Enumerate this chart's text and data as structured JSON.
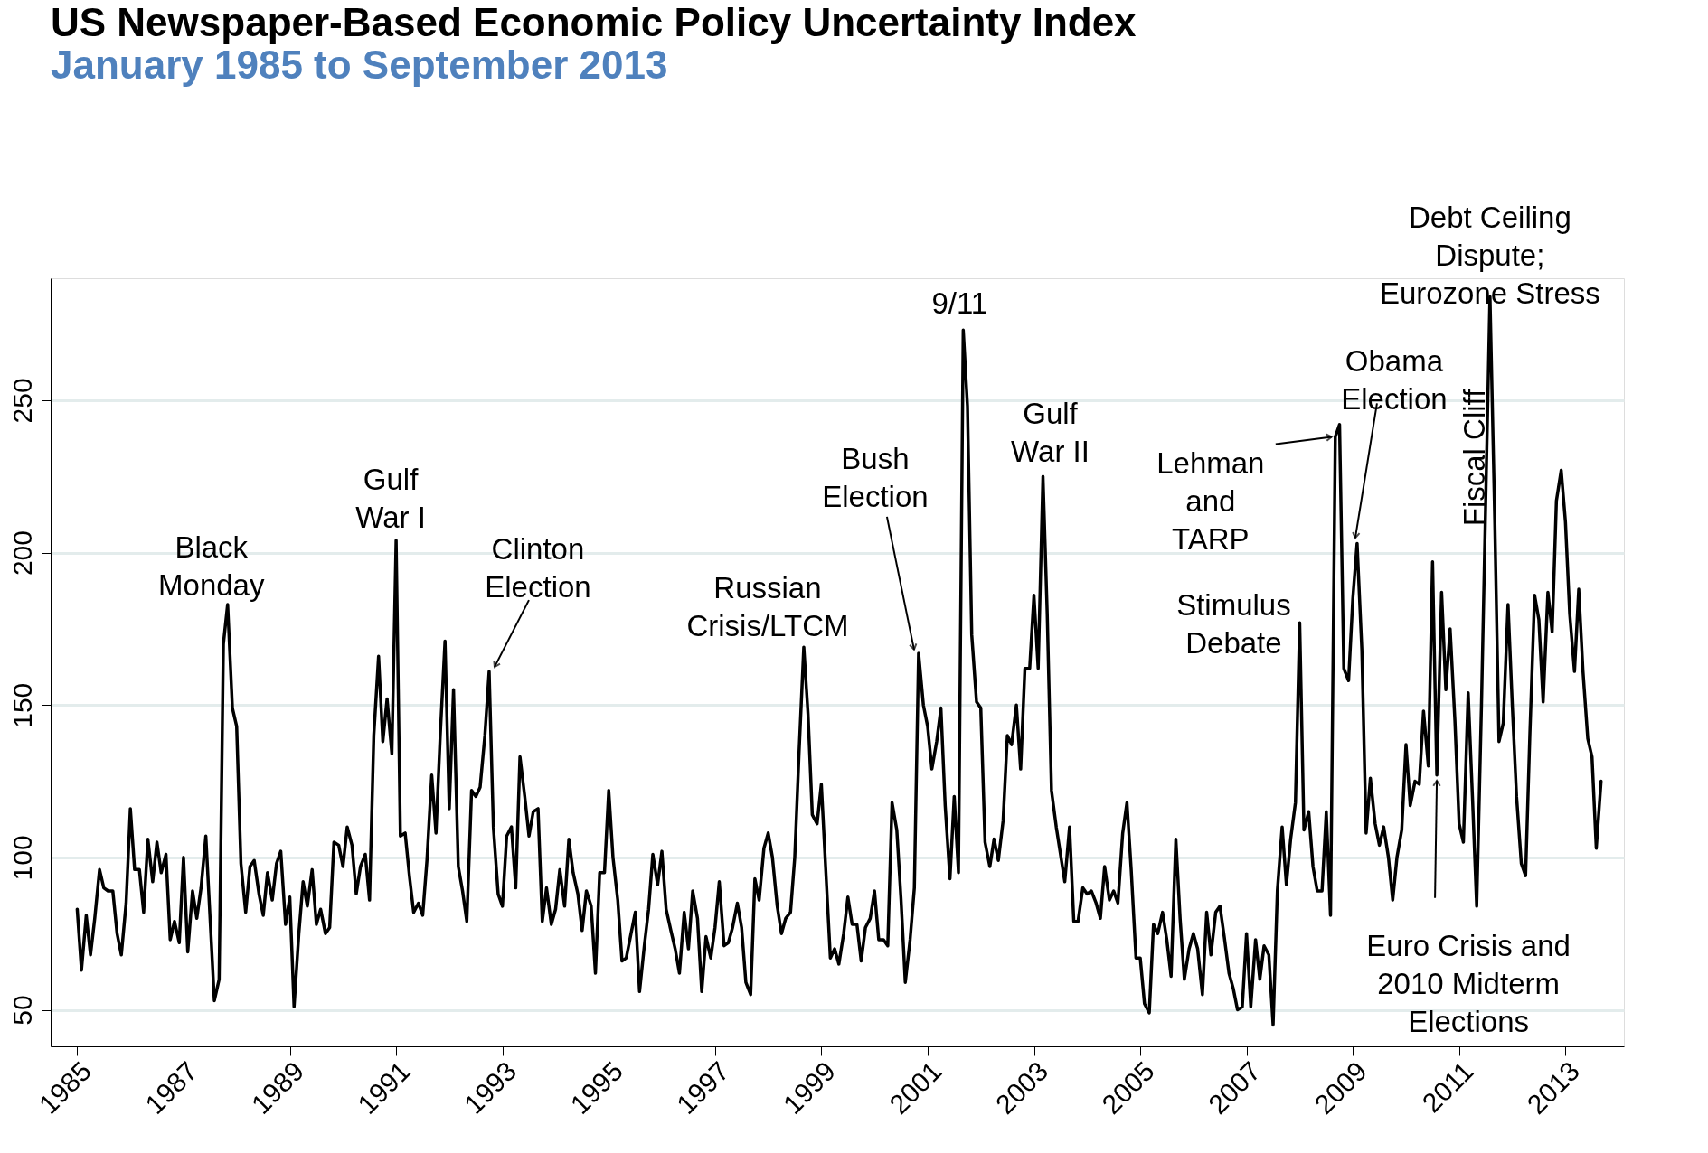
{
  "chart_data": {
    "type": "line",
    "title": "US Newspaper-Based Economic Policy Uncertainty Index",
    "subtitle": "January 1985 to September 2013",
    "x": [
      1985.0,
      1985.08,
      1985.17,
      1985.25,
      1985.33,
      1985.42,
      1985.5,
      1985.58,
      1985.67,
      1985.75,
      1985.83,
      1985.92,
      1986.0,
      1986.08,
      1986.17,
      1986.25,
      1986.33,
      1986.42,
      1986.5,
      1986.58,
      1986.67,
      1986.75,
      1986.83,
      1986.92,
      1987.0,
      1987.08,
      1987.17,
      1987.25,
      1987.33,
      1987.42,
      1987.5,
      1987.58,
      1987.67,
      1987.75,
      1987.83,
      1987.92,
      1988.0,
      1988.08,
      1988.17,
      1988.25,
      1988.33,
      1988.42,
      1988.5,
      1988.58,
      1988.67,
      1988.75,
      1988.83,
      1988.92,
      1989.0,
      1989.08,
      1989.17,
      1989.25,
      1989.33,
      1989.42,
      1989.5,
      1989.58,
      1989.67,
      1989.75,
      1989.83,
      1989.92,
      1990.0,
      1990.08,
      1990.17,
      1990.25,
      1990.33,
      1990.42,
      1990.5,
      1990.58,
      1990.67,
      1990.75,
      1990.83,
      1990.92,
      1991.0,
      1991.08,
      1991.17,
      1991.25,
      1991.33,
      1991.42,
      1991.5,
      1991.58,
      1991.67,
      1991.75,
      1991.83,
      1991.92,
      1992.0,
      1992.08,
      1992.17,
      1992.25,
      1992.33,
      1992.42,
      1992.5,
      1992.58,
      1992.67,
      1992.75,
      1992.83,
      1992.92,
      1993.0,
      1993.08,
      1993.17,
      1993.25,
      1993.33,
      1993.42,
      1993.5,
      1993.58,
      1993.67,
      1993.75,
      1993.83,
      1993.92,
      1994.0,
      1994.08,
      1994.17,
      1994.25,
      1994.33,
      1994.42,
      1994.5,
      1994.58,
      1994.67,
      1994.75,
      1994.83,
      1994.92,
      1995.0,
      1995.08,
      1995.17,
      1995.25,
      1995.33,
      1995.42,
      1995.5,
      1995.58,
      1995.67,
      1995.75,
      1995.83,
      1995.92,
      1996.0,
      1996.08,
      1996.17,
      1996.25,
      1996.33,
      1996.42,
      1996.5,
      1996.58,
      1996.67,
      1996.75,
      1996.83,
      1996.92,
      1997.0,
      1997.08,
      1997.17,
      1997.25,
      1997.33,
      1997.42,
      1997.5,
      1997.58,
      1997.67,
      1997.75,
      1997.83,
      1997.92,
      1998.0,
      1998.08,
      1998.17,
      1998.25,
      1998.33,
      1998.42,
      1998.5,
      1998.58,
      1998.67,
      1998.75,
      1998.83,
      1998.92,
      1999.0,
      1999.08,
      1999.17,
      1999.25,
      1999.33,
      1999.42,
      1999.5,
      1999.58,
      1999.67,
      1999.75,
      1999.83,
      1999.92,
      2000.0,
      2000.08,
      2000.17,
      2000.25,
      2000.33,
      2000.42,
      2000.5,
      2000.58,
      2000.67,
      2000.75,
      2000.83,
      2000.92,
      2001.0,
      2001.08,
      2001.17,
      2001.25,
      2001.33,
      2001.42,
      2001.5,
      2001.58,
      2001.67,
      2001.75,
      2001.83,
      2001.92,
      2002.0,
      2002.08,
      2002.17,
      2002.25,
      2002.33,
      2002.42,
      2002.5,
      2002.58,
      2002.67,
      2002.75,
      2002.83,
      2002.92,
      2003.0,
      2003.08,
      2003.17,
      2003.25,
      2003.33,
      2003.42,
      2003.5,
      2003.58,
      2003.67,
      2003.75,
      2003.83,
      2003.92,
      2004.0,
      2004.08,
      2004.17,
      2004.25,
      2004.33,
      2004.42,
      2004.5,
      2004.58,
      2004.67,
      2004.75,
      2004.83,
      2004.92,
      2005.0,
      2005.08,
      2005.17,
      2005.25,
      2005.33,
      2005.42,
      2005.5,
      2005.58,
      2005.67,
      2005.75,
      2005.83,
      2005.92,
      2006.0,
      2006.08,
      2006.17,
      2006.25,
      2006.33,
      2006.42,
      2006.5,
      2006.58,
      2006.67,
      2006.75,
      2006.83,
      2006.92,
      2007.0,
      2007.08,
      2007.17,
      2007.25,
      2007.33,
      2007.42,
      2007.5,
      2007.58,
      2007.67,
      2007.75,
      2007.83,
      2007.92,
      2008.0,
      2008.08,
      2008.17,
      2008.25,
      2008.33,
      2008.42,
      2008.5,
      2008.58,
      2008.67,
      2008.75,
      2008.83,
      2008.92,
      2009.0,
      2009.08,
      2009.17,
      2009.25,
      2009.33,
      2009.42,
      2009.5,
      2009.58,
      2009.67,
      2009.75,
      2009.83,
      2009.92,
      2010.0,
      2010.08,
      2010.17,
      2010.25,
      2010.33,
      2010.42,
      2010.5,
      2010.58,
      2010.67,
      2010.75,
      2010.83,
      2010.92,
      2011.0,
      2011.08,
      2011.17,
      2011.25,
      2011.33,
      2011.42,
      2011.5,
      2011.58,
      2011.67,
      2011.75,
      2011.83,
      2011.92,
      2012.0,
      2012.08,
      2012.17,
      2012.25,
      2012.33,
      2012.42,
      2012.5,
      2012.58,
      2012.67,
      2012.75,
      2012.83,
      2012.92,
      2013.0,
      2013.08,
      2013.17,
      2013.25,
      2013.33,
      2013.42,
      2013.5,
      2013.58,
      2013.67
    ],
    "series": [
      {
        "color": "#000000",
        "values": [
          83,
          63,
          81,
          68,
          80,
          96,
          90,
          89,
          89,
          75,
          68,
          85,
          116,
          96,
          96,
          82,
          106,
          92,
          105,
          95,
          101,
          73,
          79,
          72,
          100,
          69,
          89,
          80,
          90,
          107,
          80,
          53,
          60,
          170,
          183,
          149,
          143,
          98,
          82,
          97,
          99,
          88,
          81,
          95,
          86,
          98,
          102,
          78,
          87,
          51,
          75,
          92,
          84,
          96,
          78,
          83,
          75,
          77,
          105,
          104,
          97,
          110,
          104,
          88,
          97,
          101,
          86,
          140,
          166,
          138,
          152,
          134,
          204,
          107,
          108,
          94,
          82,
          85,
          81,
          99,
          127,
          108,
          140,
          171,
          116,
          155,
          97,
          89,
          79,
          122,
          120,
          123,
          140,
          161,
          110,
          88,
          84,
          107,
          110,
          90,
          133,
          120,
          107,
          115,
          116,
          79,
          90,
          78,
          83,
          96,
          84,
          106,
          95,
          88,
          76,
          89,
          84,
          62,
          95,
          95,
          122,
          100,
          86,
          66,
          67,
          75,
          82,
          56,
          71,
          83,
          101,
          91,
          102,
          83,
          76,
          70,
          62,
          82,
          70,
          89,
          80,
          56,
          74,
          67,
          77,
          92,
          71,
          72,
          77,
          85,
          77,
          59,
          55,
          93,
          86,
          103,
          108,
          100,
          84,
          75,
          80,
          82,
          100,
          134,
          169,
          147,
          114,
          111,
          124,
          97,
          67,
          70,
          65,
          75,
          87,
          78,
          78,
          66,
          77,
          80,
          89,
          73,
          73,
          71,
          118,
          109,
          86,
          59,
          73,
          90,
          167,
          150,
          143,
          129,
          138,
          149,
          117,
          93,
          120,
          95,
          273,
          248,
          173,
          151,
          149,
          105,
          97,
          106,
          99,
          112,
          140,
          137,
          150,
          129,
          162,
          162,
          186,
          162,
          225,
          180,
          122,
          110,
          101,
          92,
          110,
          79,
          79,
          90,
          88,
          89,
          85,
          80,
          97,
          86,
          89,
          85,
          108,
          118,
          96,
          67,
          67,
          52,
          49,
          78,
          75,
          82,
          73,
          61,
          106,
          80,
          60,
          70,
          75,
          70,
          55,
          82,
          68,
          82,
          84,
          74,
          62,
          57,
          50,
          51,
          75,
          51,
          73,
          60,
          71,
          68,
          45,
          89,
          110,
          91,
          106,
          118,
          177,
          109,
          115,
          97,
          89,
          89,
          115,
          81,
          238,
          242,
          162,
          158,
          185,
          203,
          168,
          108,
          126,
          111,
          104,
          110,
          100,
          86,
          100,
          109,
          137,
          117,
          125,
          124,
          148,
          130,
          197,
          127,
          187,
          155,
          175,
          145,
          111,
          105,
          154,
          120,
          84,
          150,
          217,
          284,
          211,
          138,
          144,
          183,
          150,
          120,
          98,
          94,
          140,
          186,
          178,
          151,
          187,
          174,
          217,
          227,
          210,
          180,
          161,
          188,
          161,
          139,
          133,
          103,
          125
        ]
      }
    ],
    "xlim": [
      1984.5,
      2014.1
    ],
    "ylim": [
      38,
      290
    ],
    "xticks": [
      1985,
      1987,
      1989,
      1991,
      1993,
      1995,
      1997,
      1999,
      2001,
      2003,
      2005,
      2007,
      2009,
      2011,
      2013
    ],
    "yticks": [
      50,
      100,
      150,
      200,
      250
    ],
    "grid": "y",
    "line_style": "solid",
    "annotations": [
      {
        "text": "Black\nMonday",
        "x": 1987.83,
        "y": 183
      },
      {
        "text": "Gulf\nWar I",
        "x": 1991.0,
        "y": 204
      },
      {
        "text": "Clinton\nElection",
        "x": 1992.75,
        "y": 161
      },
      {
        "text": "Russian\nCrisis/LTCM",
        "x": 1998.67,
        "y": 169
      },
      {
        "text": "Bush\nElection",
        "x": 2000.83,
        "y": 167
      },
      {
        "text": "9/11",
        "x": 2001.67,
        "y": 273
      },
      {
        "text": "Gulf\nWar II",
        "x": 2003.17,
        "y": 225
      },
      {
        "text": "Lehman\nand\nTARP",
        "x": 2008.67,
        "y": 238
      },
      {
        "text": "Obama\nElection",
        "x": 2009.08,
        "y": 203
      },
      {
        "text": "Stimulus\nDebate",
        "x": 2008.0,
        "y": 177
      },
      {
        "text": "Debt Ceiling\nDispute;\nEurozone Stress",
        "x": 2011.58,
        "y": 284
      },
      {
        "text": "Fiscal Cliff",
        "x": 2012.92,
        "y": 227
      },
      {
        "text": "Euro Crisis and\n2010 Midterm\nElections",
        "x": 2010.58,
        "y": 127
      }
    ]
  }
}
